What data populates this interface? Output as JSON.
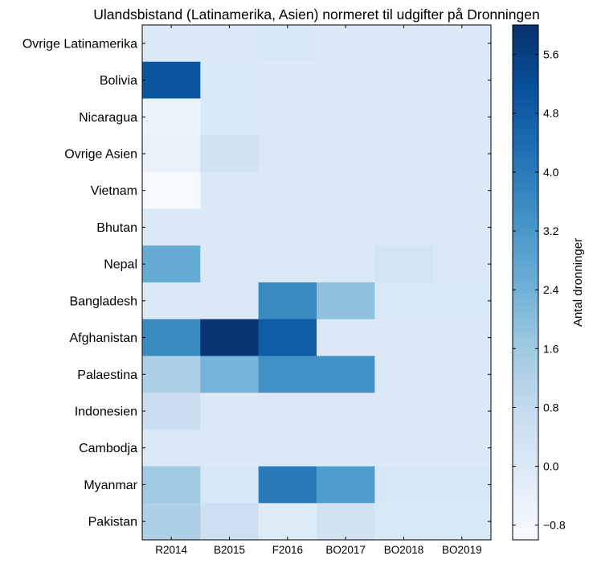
{
  "chart_data": {
    "type": "heatmap",
    "title": "Ulandsbistand (Latinamerika, Asien) normeret til udgifter på Dronningen",
    "xlabel": "",
    "ylabel": "",
    "x_categories": [
      "R2014",
      "B2015",
      "F2016",
      "BO2017",
      "BO2018",
      "BO2019"
    ],
    "y_categories": [
      "Ovrige Latinamerika",
      "Bolivia",
      "Nicaragua",
      "Ovrige Asien",
      "Vietnam",
      "Bhutan",
      "Nepal",
      "Bangladesh",
      "Afghanistan",
      "Palaestina",
      "Indonesien",
      "Cambodja",
      "Myanmar",
      "Pakistan"
    ],
    "values": [
      [
        0.0,
        0.0,
        0.1,
        0.0,
        0.0,
        0.0
      ],
      [
        5.0,
        0.05,
        0.0,
        0.0,
        0.0,
        0.0
      ],
      [
        -0.6,
        0.05,
        0.0,
        0.0,
        0.0,
        0.0
      ],
      [
        -0.5,
        0.35,
        0.0,
        0.0,
        0.0,
        0.0
      ],
      [
        -0.95,
        0.0,
        0.0,
        0.0,
        0.0,
        0.0
      ],
      [
        0.0,
        0.0,
        0.0,
        0.0,
        0.0,
        0.0
      ],
      [
        2.6,
        0.0,
        0.0,
        0.0,
        0.3,
        0.0
      ],
      [
        0.0,
        0.0,
        3.6,
        1.9,
        0.05,
        0.05
      ],
      [
        3.6,
        5.9,
        4.8,
        0.0,
        0.0,
        0.0
      ],
      [
        1.3,
        2.3,
        3.4,
        3.4,
        0.0,
        0.0
      ],
      [
        0.6,
        0.0,
        0.0,
        0.0,
        0.0,
        0.0
      ],
      [
        0.0,
        0.0,
        0.0,
        0.0,
        0.0,
        0.0
      ],
      [
        1.6,
        0.1,
        4.0,
        3.1,
        0.1,
        0.1
      ],
      [
        1.3,
        0.5,
        -0.1,
        0.4,
        0.05,
        0.05
      ]
    ],
    "colormap": "Blues",
    "color_range": [
      -1.0,
      6.0
    ],
    "colorbar": {
      "label": "Antal dronninger",
      "ticks": [
        "−0.8",
        "0.0",
        "0.8",
        "1.6",
        "2.4",
        "3.2",
        "4.0",
        "4.8",
        "5.6"
      ],
      "tick_values": [
        -0.8,
        0.0,
        0.8,
        1.6,
        2.4,
        3.2,
        4.0,
        4.8,
        5.6
      ]
    },
    "grid": false,
    "legend": "colorbar-right"
  }
}
